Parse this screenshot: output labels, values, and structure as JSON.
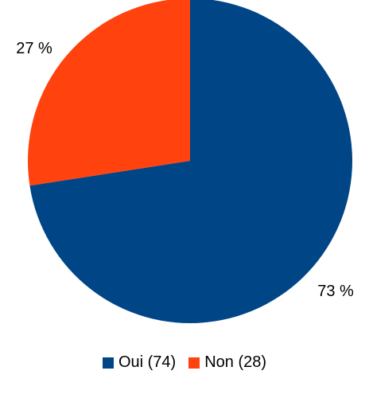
{
  "chart_data": {
    "type": "pie",
    "slices": [
      {
        "label": "Oui",
        "count": 74,
        "percent_label": "73 %",
        "legend_label": "Oui (74)",
        "color": "#004586"
      },
      {
        "label": "Non",
        "count": 28,
        "percent_label": "27 %",
        "legend_label": "Non (28)",
        "color": "#ff420e"
      }
    ],
    "start": "12 o'clock",
    "direction": "clockwise",
    "legend_placement": "bottom"
  }
}
